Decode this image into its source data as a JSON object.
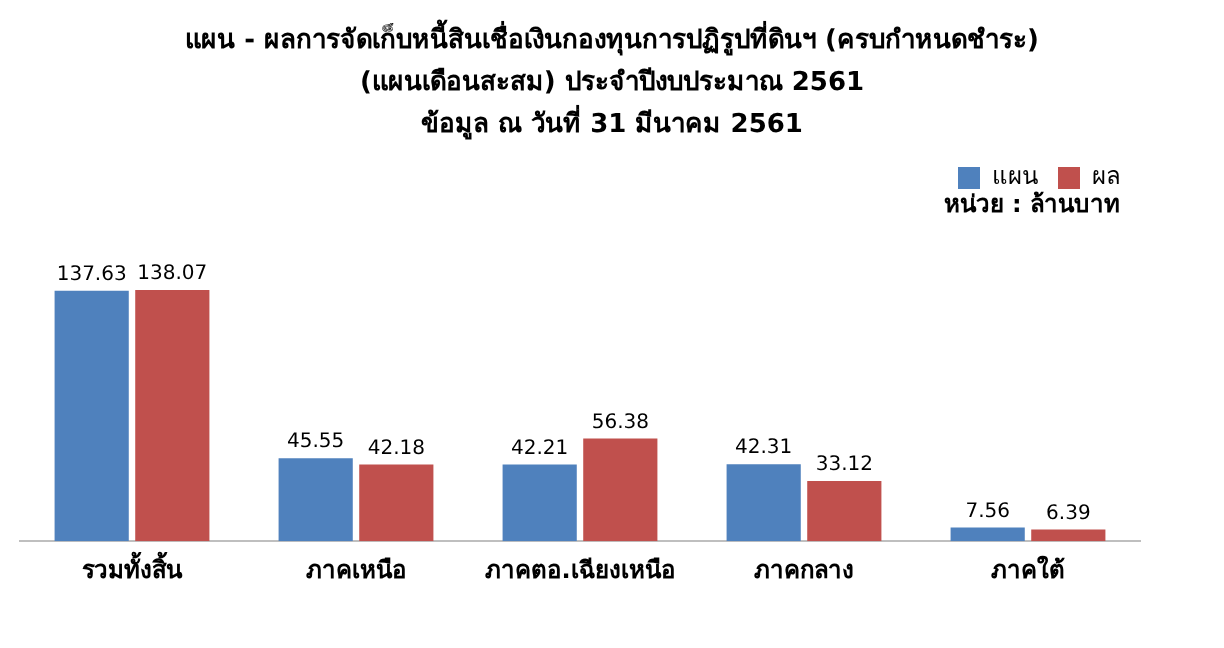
{
  "chart_data": {
    "type": "bar",
    "title": "แผน - ผลการจัดเก็บหนี้สินเชื่อเงินกองทุนการปฏิรูปที่ดินฯ (ครบกำหนดชำระ)",
    "subtitle": "(แผนเดือนสะสม)  ประจำปีงบประมาณ 2561\nข้อมูล ณ วันที่ 31 มีนาคม 2561",
    "categories": [
      "รวมทั้งสิ้น",
      "ภาคเหนือ",
      "ภาคตอ.เฉียงเหนือ",
      "ภาคกลาง",
      "ภาคใต้"
    ],
    "series": [
      {
        "name": "แผน",
        "color": "#4f81bd",
        "values": [
          137.63,
          45.55,
          42.21,
          42.31,
          7.56
        ]
      },
      {
        "name": "ผล",
        "color": "#c0504d",
        "values": [
          138.07,
          42.18,
          56.38,
          33.12,
          6.39
        ]
      }
    ],
    "data_labels": true,
    "legend": "top right",
    "grid": false,
    "tick_labels": "x",
    "annotations": [
      "หน่วย : ล้านบาท"
    ]
  }
}
